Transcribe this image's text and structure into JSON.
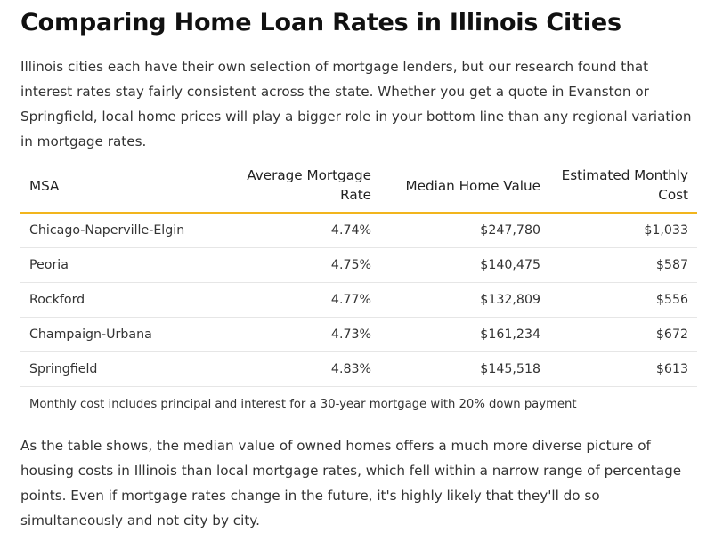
{
  "article": {
    "title": "Comparing Home Loan Rates in Illinois Cities",
    "intro": "Illinois cities each have their own selection of mortgage lenders, but our research found that interest rates stay fairly consistent across the state. Whether you get a quote in Evanston or Springfield, local home prices will play a bigger role in your bottom line than any regional variation in mortgage rates.",
    "outro": "As the table shows, the median value of owned homes offers a much more diverse picture of housing costs in Illinois than local mortgage rates, which fell within a narrow range of percentage points. Even if mortgage rates change in the future, it's highly likely that they'll do so simultaneously and not city by city."
  },
  "table": {
    "headers": {
      "msa": "MSA",
      "rate": "Average Mortgage Rate",
      "home_value": "Median Home Value",
      "monthly_cost": "Estimated Monthly Cost"
    },
    "rows": [
      {
        "msa": "Chicago-Naperville-Elgin",
        "rate": "4.74%",
        "home_value": "$247,780",
        "monthly_cost": "$1,033"
      },
      {
        "msa": "Peoria",
        "rate": "4.75%",
        "home_value": "$140,475",
        "monthly_cost": "$587"
      },
      {
        "msa": "Rockford",
        "rate": "4.77%",
        "home_value": "$132,809",
        "monthly_cost": "$556"
      },
      {
        "msa": "Champaign-Urbana",
        "rate": "4.73%",
        "home_value": "$161,234",
        "monthly_cost": "$672"
      },
      {
        "msa": "Springfield",
        "rate": "4.83%",
        "home_value": "$145,518",
        "monthly_cost": "$613"
      }
    ],
    "footnote": "Monthly cost includes principal and interest for a 30-year mortgage with 20% down payment"
  },
  "colors": {
    "header_rule": "#f2b51d",
    "row_rule": "#e6e6e6"
  }
}
